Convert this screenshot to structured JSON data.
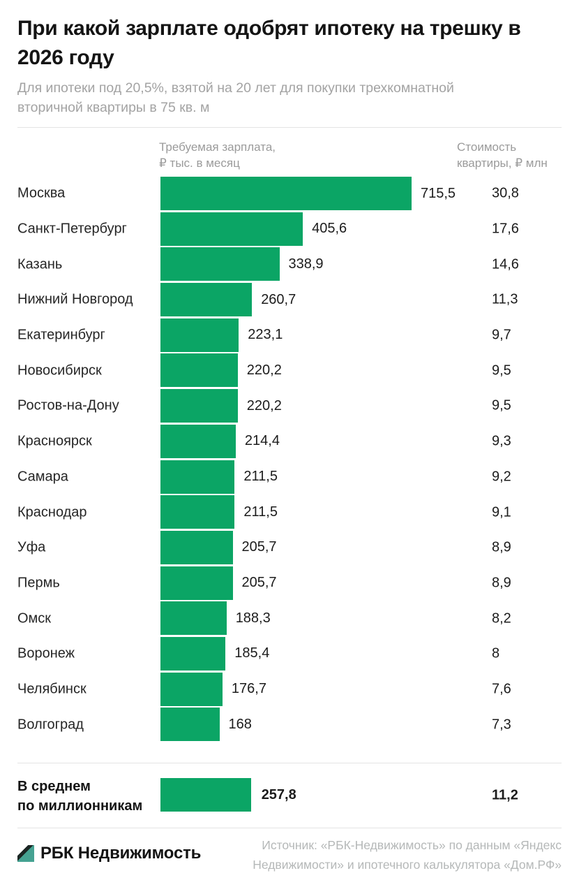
{
  "title": "При какой зарплате одобрят ипотеку на трешку в 2026 году",
  "subtitle": "Для ипотеки под 20,5%, взятой на 20 лет для покупки трехкомнатной вторичной квартиры в 75 кв. м",
  "columns": {
    "salary_header": [
      "Требуемая зарплата,",
      "₽ тыс. в месяц"
    ],
    "price_header": [
      "Стоимость",
      "квартиры, ₽ млн"
    ]
  },
  "chart_data": {
    "type": "bar",
    "orientation": "horizontal",
    "title": "При какой зарплате одобрят ипотеку на трешку в 2026 году",
    "subtitle": "Для ипотеки под 20,5%, взятой на 20 лет для покупки трехкомнатной вторичной квартиры в 75 кв. м",
    "categories": [
      "Москва",
      "Санкт-Петербург",
      "Казань",
      "Нижний Новгород",
      "Екатеринбург",
      "Новосибирск",
      "Ростов-на-Дону",
      "Красноярск",
      "Самара",
      "Краснодар",
      "Уфа",
      "Пермь",
      "Омск",
      "Воронеж",
      "Челябинск",
      "Волгоград"
    ],
    "series": [
      {
        "name": "Требуемая зарплата, ₽ тыс. в месяц",
        "values": [
          715.5,
          405.6,
          338.9,
          260.7,
          223.1,
          220.2,
          220.2,
          214.4,
          211.5,
          211.5,
          205.7,
          205.7,
          188.3,
          185.4,
          176.7,
          168
        ]
      },
      {
        "name": "Стоимость квартиры, ₽ млн",
        "values": [
          30.8,
          17.6,
          14.6,
          11.3,
          9.7,
          9.5,
          9.5,
          9.3,
          9.2,
          9.1,
          8.9,
          8.9,
          8.2,
          8,
          7.6,
          7.3
        ]
      }
    ],
    "average": {
      "label": "В среднем по миллионникам",
      "salary": 257.8,
      "price": 11.2
    },
    "xmax": 715.5,
    "value_labels": true,
    "grid": false,
    "legend": false
  },
  "rows": [
    {
      "city": "Москва",
      "salary": "715,5",
      "price": "30,8",
      "value": 715.5
    },
    {
      "city": "Санкт-Петербург",
      "salary": "405,6",
      "price": "17,6",
      "value": 405.6
    },
    {
      "city": "Казань",
      "salary": "338,9",
      "price": "14,6",
      "value": 338.9
    },
    {
      "city": "Нижний Новгород",
      "salary": "260,7",
      "price": "11,3",
      "value": 260.7
    },
    {
      "city": "Екатеринбург",
      "salary": "223,1",
      "price": "9,7",
      "value": 223.1
    },
    {
      "city": "Новосибирск",
      "salary": "220,2",
      "price": "9,5",
      "value": 220.2
    },
    {
      "city": "Ростов-на-Дону",
      "salary": "220,2",
      "price": "9,5",
      "value": 220.2
    },
    {
      "city": "Красноярск",
      "salary": "214,4",
      "price": "9,3",
      "value": 214.4
    },
    {
      "city": "Самара",
      "salary": "211,5",
      "price": "9,2",
      "value": 211.5
    },
    {
      "city": "Краснодар",
      "salary": "211,5",
      "price": "9,1",
      "value": 211.5
    },
    {
      "city": "Уфа",
      "salary": "205,7",
      "price": "8,9",
      "value": 205.7
    },
    {
      "city": "Пермь",
      "salary": "205,7",
      "price": "8,9",
      "value": 205.7
    },
    {
      "city": "Омск",
      "salary": "188,3",
      "price": "8,2",
      "value": 188.3
    },
    {
      "city": "Воронеж",
      "salary": "185,4",
      "price": "8",
      "value": 185.4
    },
    {
      "city": "Челябинск",
      "salary": "176,7",
      "price": "7,6",
      "value": 176.7
    },
    {
      "city": "Волгоград",
      "salary": "168",
      "price": "7,3",
      "value": 168
    }
  ],
  "summary": {
    "label_line1": "В среднем",
    "label_line2": "по миллионникам",
    "salary": "257,8",
    "price": "11,2",
    "value": 257.8
  },
  "footer": {
    "brand": "РБК Недвижимость",
    "source_line1": "Источник: «РБК-Недвижимость» по данным «Яндекс",
    "source_line2": "Недвижимости» и ипотечного калькулятора «Дом.РФ»"
  },
  "colors": {
    "bar": "#0ba565",
    "logo_teal": "#45a292",
    "logo_dark": "#1b2624",
    "text_dark": "#141414",
    "text_gray": "#a3a3a3",
    "source_gray": "#b5b8b8"
  }
}
